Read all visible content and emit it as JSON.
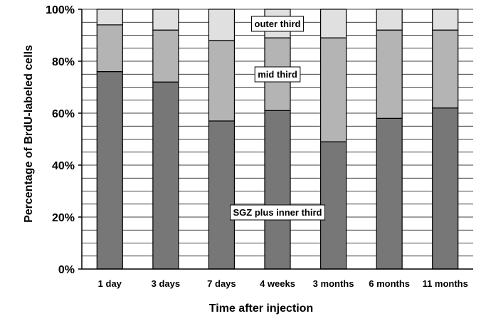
{
  "chart_data": {
    "type": "bar",
    "stacked": true,
    "percent_stacked": true,
    "categories": [
      "1 day",
      "3 days",
      "7 days",
      "4 weeks",
      "3 months",
      "6 months",
      "11 months"
    ],
    "series": [
      {
        "name": "SGZ plus inner third",
        "values": [
          76,
          72,
          57,
          61,
          49,
          58,
          62
        ],
        "color": "#777777"
      },
      {
        "name": "mid third",
        "values": [
          18,
          20,
          31,
          28,
          40,
          34,
          30
        ],
        "color": "#b4b4b4"
      },
      {
        "name": "outer third",
        "values": [
          6,
          8,
          12,
          11,
          11,
          8,
          8
        ],
        "color": "#e0e0e0"
      }
    ],
    "xlabel": "Time after injection",
    "ylabel": "Percentage of BrdU-labeled cells",
    "ylim": [
      0,
      100
    ],
    "yticks": [
      "0%",
      "20%",
      "40%",
      "60%",
      "80%",
      "100%"
    ],
    "grid": true
  }
}
